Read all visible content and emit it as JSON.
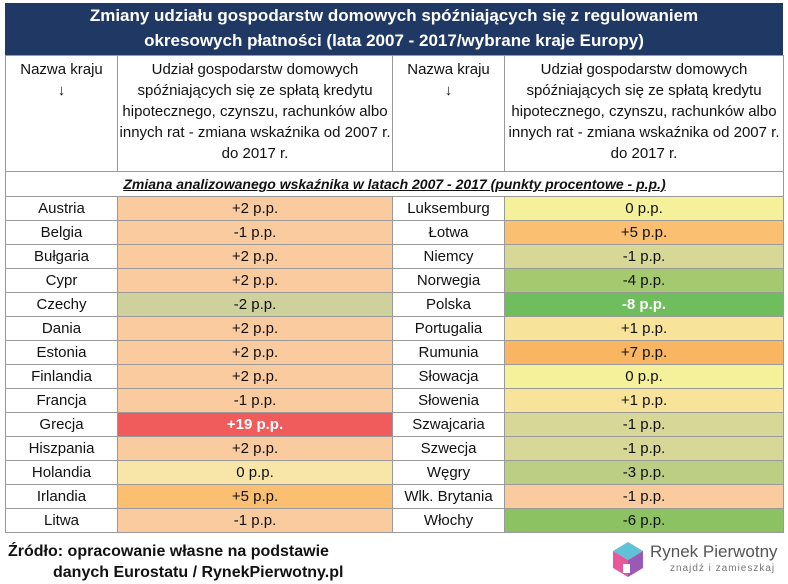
{
  "title": {
    "line1": "Zmiany udziału gospodarstw domowych spóźniających się z regulowaniem",
    "line2": "okresowych płatności (lata 2007 - 2017/wybrane kraje Europy)"
  },
  "header": {
    "country_label": "Nazwa kraju",
    "arrow": "↓",
    "indicator_label": "Udział gospodarstw domowych spóźniających się ze spłatą kredytu hipotecznego, czynszu, rachunków albo innych rat - zmiana wskaźnika od 2007 r. do 2017 r."
  },
  "subheader": "Zmiana analizowanego wskaźnika w latach 2007 - 2017 (punkty procentowe - p.p.)",
  "rows": [
    {
      "left_country": "Austria",
      "left_value": "+2 p.p.",
      "left_color": "#fbcba0",
      "left_bold": false,
      "right_country": "Luksemburg",
      "right_value": "0 p.p.",
      "right_color": "#f5f19a",
      "right_bold": false
    },
    {
      "left_country": "Belgia",
      "left_value": "-1 p.p.",
      "left_color": "#fbcba0",
      "left_bold": false,
      "right_country": "Łotwa",
      "right_value": "+5 p.p.",
      "right_color": "#fbbf72",
      "right_bold": false
    },
    {
      "left_country": "Bułgaria",
      "left_value": "+2 p.p.",
      "left_color": "#fbcba0",
      "left_bold": false,
      "right_country": "Niemcy",
      "right_value": "-1 p.p.",
      "right_color": "#d7d798",
      "right_bold": false
    },
    {
      "left_country": "Cypr",
      "left_value": "+2 p.p.",
      "left_color": "#fbcba0",
      "left_bold": false,
      "right_country": "Norwegia",
      "right_value": "-4 p.p.",
      "right_color": "#a4c96e",
      "right_bold": false
    },
    {
      "left_country": "Czechy",
      "left_value": "-2 p.p.",
      "left_color": "#cfd19c",
      "left_bold": false,
      "right_country": "Polska",
      "right_value": "-8 p.p.",
      "right_color": "#6fbd5d",
      "right_bold": true
    },
    {
      "left_country": "Dania",
      "left_value": "+2 p.p.",
      "left_color": "#fbcba0",
      "left_bold": false,
      "right_country": "Portugalia",
      "right_value": "+1 p.p.",
      "right_color": "#f8e39a",
      "right_bold": false
    },
    {
      "left_country": "Estonia",
      "left_value": "+2 p.p.",
      "left_color": "#fbcba0",
      "left_bold": false,
      "right_country": "Rumunia",
      "right_value": "+7 p.p.",
      "right_color": "#f8b562",
      "right_bold": false
    },
    {
      "left_country": "Finlandia",
      "left_value": "+2 p.p.",
      "left_color": "#fbcba0",
      "left_bold": false,
      "right_country": "Słowacja",
      "right_value": "0 p.p.",
      "right_color": "#f5f19a",
      "right_bold": false
    },
    {
      "left_country": "Francja",
      "left_value": "-1 p.p.",
      "left_color": "#fbcba0",
      "left_bold": false,
      "right_country": "Słowenia",
      "right_value": "+1 p.p.",
      "right_color": "#f8e39a",
      "right_bold": false
    },
    {
      "left_country": "Grecja",
      "left_value": "+19 p.p.",
      "left_color": "#f05b5b",
      "left_bold": true,
      "right_country": "Szwajcaria",
      "right_value": "-1 p.p.",
      "right_color": "#d7d798",
      "right_bold": false
    },
    {
      "left_country": "Hiszpania",
      "left_value": "+2 p.p.",
      "left_color": "#fbcba0",
      "left_bold": false,
      "right_country": "Szwecja",
      "right_value": "-1 p.p.",
      "right_color": "#d7d798",
      "right_bold": false
    },
    {
      "left_country": "Holandia",
      "left_value": "0 p.p.",
      "left_color": "#f8e6a8",
      "left_bold": false,
      "right_country": "Węgry",
      "right_value": "-3 p.p.",
      "right_color": "#bccd84",
      "right_bold": false
    },
    {
      "left_country": "Irlandia",
      "left_value": "+5 p.p.",
      "left_color": "#fbbf72",
      "left_bold": false,
      "right_country": "Wlk. Brytania",
      "right_value": "-1 p.p.",
      "right_color": "#fbcba0",
      "right_bold": false
    },
    {
      "left_country": "Litwa",
      "left_value": "-1 p.p.",
      "left_color": "#fbcba0",
      "left_bold": false,
      "right_country": "Włochy",
      "right_value": "-6 p.p.",
      "right_color": "#8dc263",
      "right_bold": false
    }
  ],
  "footer": {
    "line1": "Źródło: opracowanie własne na podstawie",
    "line2": "danych Eurostatu / RynekPierwotny.pl"
  },
  "logo": {
    "name": "Rynek Pierwotny",
    "tagline": "znajdź i zamieszkaj",
    "icon": "house-logo-icon"
  }
}
